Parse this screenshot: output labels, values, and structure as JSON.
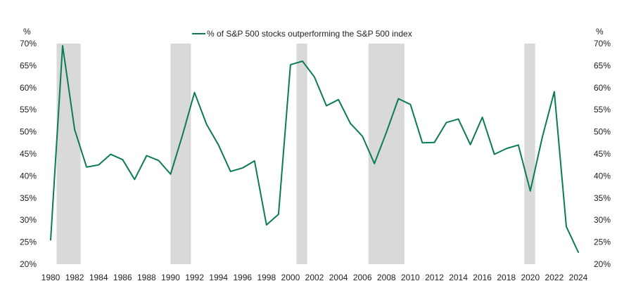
{
  "chart_data": {
    "type": "line",
    "left_unit": "%",
    "right_unit": "%",
    "legend": {
      "position": "top-center",
      "label": "% of S&P 500 stocks outperforming the S&P 500 index"
    },
    "ylim": [
      20,
      70
    ],
    "yticks": [
      "20%",
      "25%",
      "30%",
      "35%",
      "40%",
      "45%",
      "50%",
      "55%",
      "60%",
      "65%",
      "70%"
    ],
    "xlim": [
      1980,
      2024
    ],
    "xticks": [
      "1980",
      "1982",
      "1984",
      "1986",
      "1988",
      "1990",
      "1992",
      "1994",
      "1996",
      "1998",
      "2000",
      "2002",
      "2004",
      "2006",
      "2008",
      "2010",
      "2012",
      "2014",
      "2016",
      "2018",
      "2020",
      "2022",
      "2024"
    ],
    "recession_bands": [
      [
        1980.5,
        1982.5
      ],
      [
        1990.0,
        1991.7
      ],
      [
        2000.5,
        2001.4
      ],
      [
        2006.5,
        2009.5
      ],
      [
        2019.5,
        2020.4
      ]
    ],
    "colors": {
      "line": "#0b7a57",
      "band": "#d9d9d9"
    },
    "series": [
      {
        "name": "% of S&P 500 stocks outperforming the S&P 500 index",
        "x": [
          1980,
          1981,
          1982,
          1983,
          1984,
          1985,
          1986,
          1987,
          1988,
          1989,
          1990,
          1991,
          1992,
          1993,
          1994,
          1995,
          1996,
          1997,
          1998,
          1999,
          2000,
          2001,
          2002,
          2003,
          2004,
          2005,
          2006,
          2007,
          2008,
          2009,
          2010,
          2011,
          2012,
          2013,
          2014,
          2015,
          2016,
          2017,
          2018,
          2019,
          2020,
          2021,
          2022,
          2023,
          2024
        ],
        "values": [
          25.5,
          69.5,
          50.5,
          42.0,
          42.5,
          44.9,
          43.7,
          39.2,
          44.6,
          43.5,
          40.4,
          49.3,
          58.9,
          51.7,
          47.0,
          41.0,
          41.8,
          43.4,
          28.9,
          31.3,
          65.2,
          66.0,
          62.4,
          55.9,
          57.3,
          51.9,
          49.0,
          42.8,
          49.9,
          57.5,
          56.2,
          47.5,
          47.6,
          52.1,
          52.9,
          47.1,
          53.3,
          44.9,
          46.2,
          47.0,
          36.6,
          48.8,
          59.1,
          28.5,
          22.7
        ]
      }
    ]
  }
}
